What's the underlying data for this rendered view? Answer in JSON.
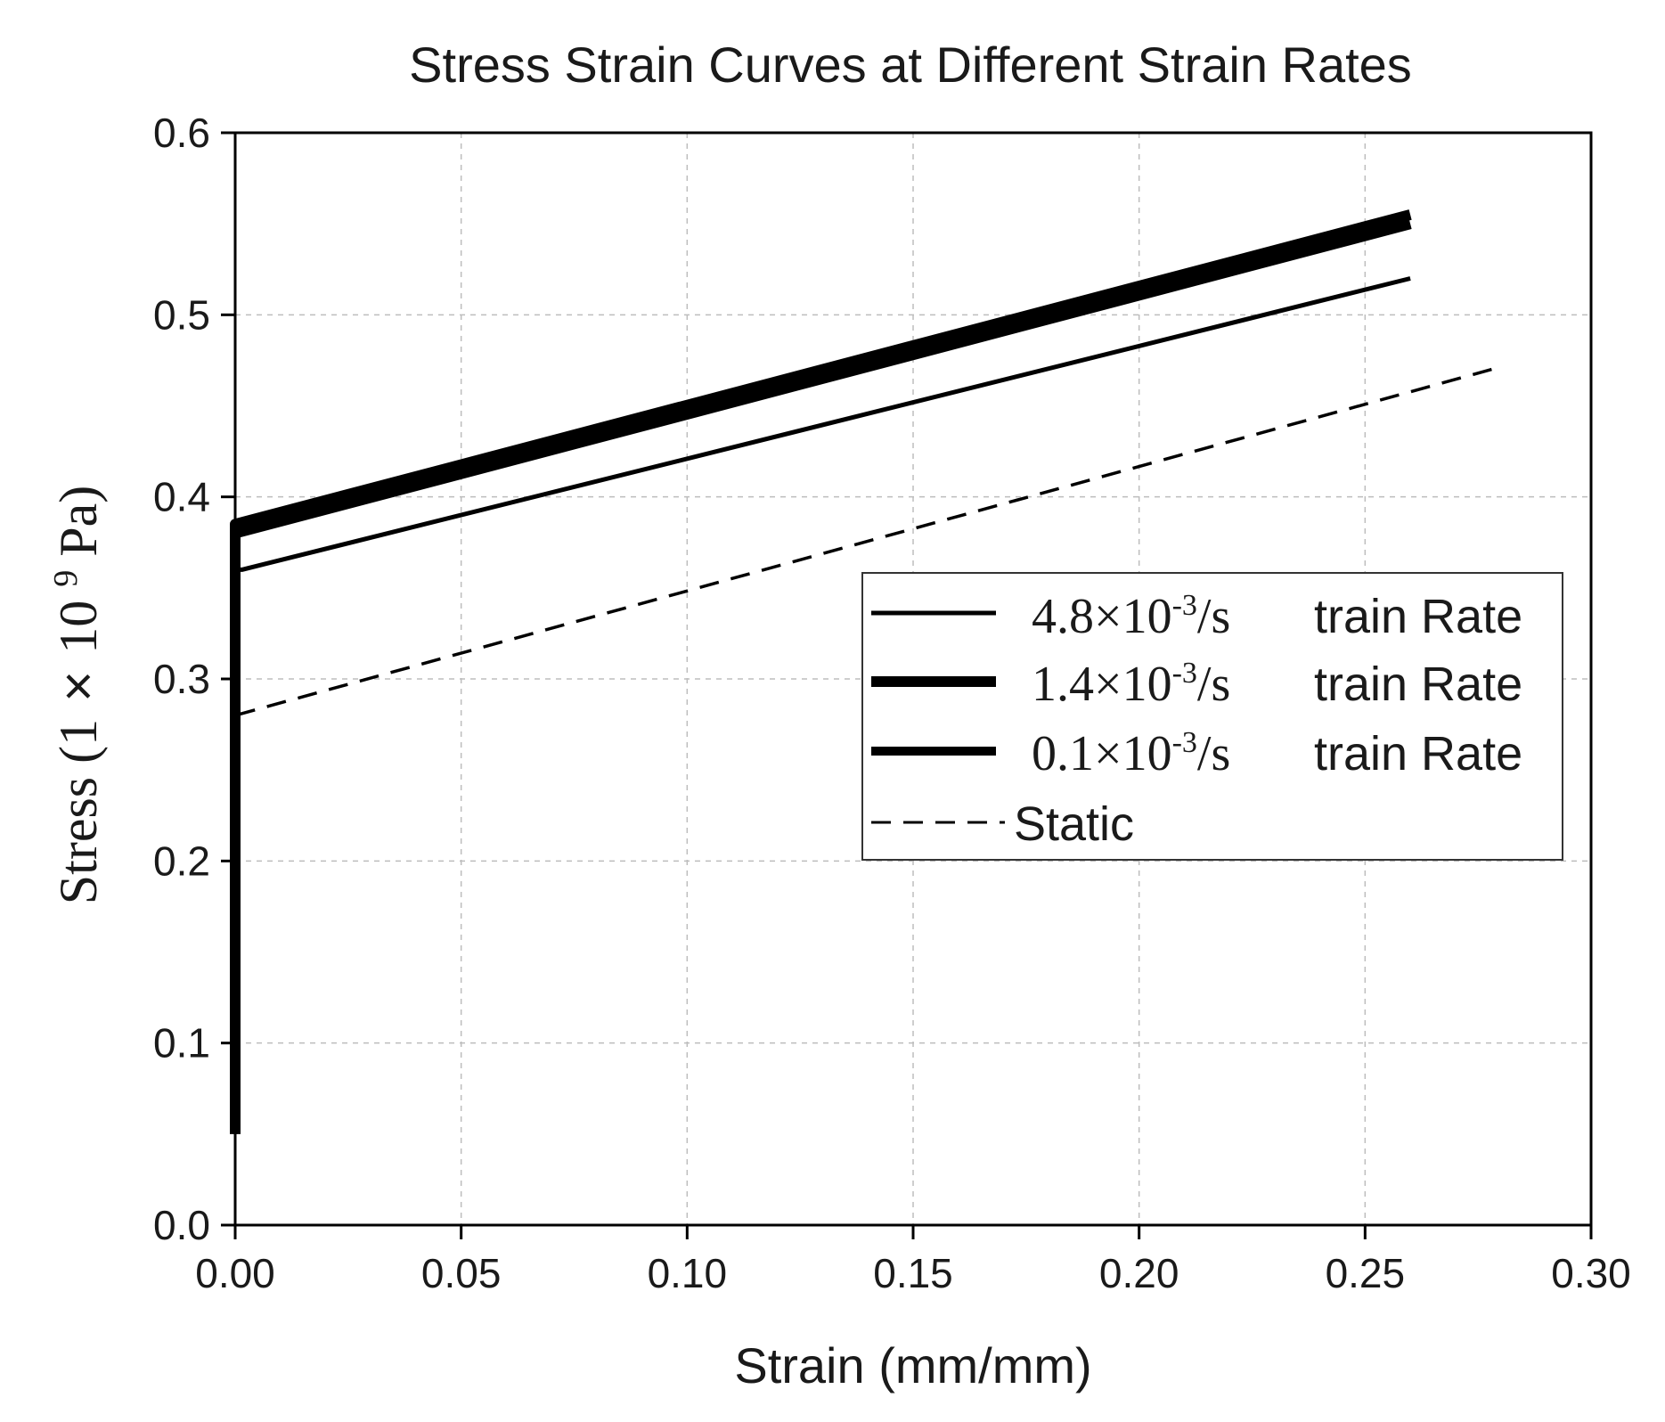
{
  "chart_data": {
    "type": "line",
    "title": "Stress Strain Curves at Different Strain Rates",
    "xlabel": "Strain (mm/mm)",
    "ylabel": {
      "prefix": "Stress (1",
      "times": "×",
      "base": "10",
      "exp": "9",
      "suffix": " Pa)"
    },
    "xlim": [
      0,
      0.3
    ],
    "ylim": [
      0,
      0.6
    ],
    "xticks": [
      "0.00",
      "0.05",
      "0.10",
      "0.15",
      "0.20",
      "0.25",
      "0.30"
    ],
    "yticks": [
      "0.0",
      "0.1",
      "0.2",
      "0.3",
      "0.4",
      "0.5",
      "0.6"
    ],
    "grid": true,
    "legend_position": "center-right",
    "series": [
      {
        "name": "4.8×10-3/s train Rate",
        "legend": {
          "mantissa": "4.8×10",
          "exp": "-3",
          "unit": "/s",
          "suffix": "train Rate"
        },
        "style": "thin",
        "color": "#000000",
        "x": [
          0.0,
          0.0,
          0.0015,
          0.26
        ],
        "y": [
          0.05,
          0.36,
          0.36,
          0.52
        ]
      },
      {
        "name": "1.4×10-3/s train Rate",
        "legend": {
          "mantissa": "1.4×10",
          "exp": "-3",
          "unit": "/s",
          "suffix": "train Rate"
        },
        "style": "thick",
        "color": "#000000",
        "x": [
          0.0,
          0.0,
          0.26
        ],
        "y": [
          0.05,
          0.385,
          0.555
        ]
      },
      {
        "name": "0.1×10-3/s train Rate",
        "legend": {
          "mantissa": "0.1×10",
          "exp": "-3",
          "unit": "/s",
          "suffix": "train Rate"
        },
        "style": "thick",
        "color": "#000000",
        "x": [
          0.0,
          0.0,
          0.26
        ],
        "y": [
          0.05,
          0.38,
          0.55
        ]
      },
      {
        "name": "Static",
        "legend": {
          "label": "Static"
        },
        "style": "dashed",
        "color": "#000000",
        "x": [
          0.0,
          0.0,
          0.278
        ],
        "y": [
          0.21,
          0.28,
          0.47
        ]
      }
    ]
  }
}
